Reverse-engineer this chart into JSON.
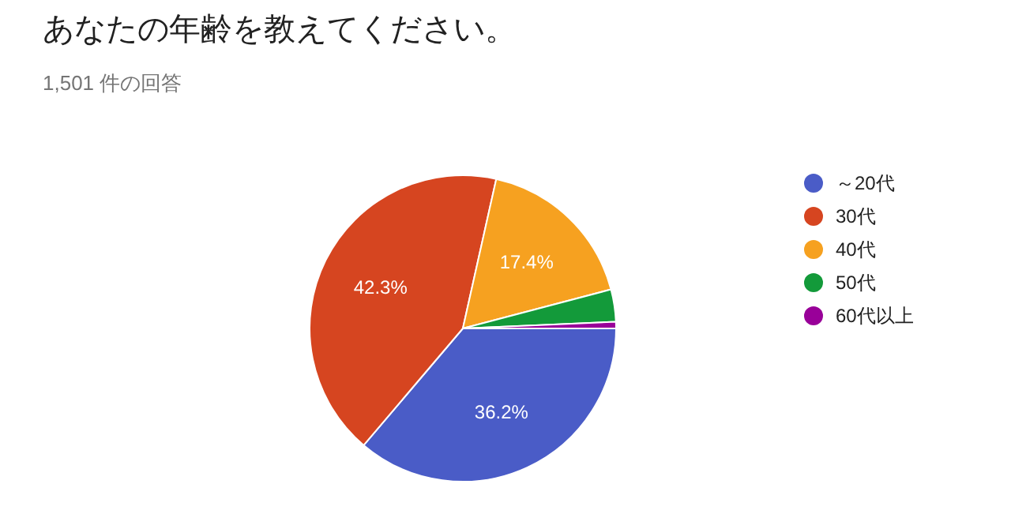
{
  "chart_data": {
    "type": "pie",
    "title": "あなたの年齢を教えてください。",
    "subtitle": "1,501 件の回答",
    "categories": [
      "～20代",
      "30代",
      "40代",
      "50代",
      "60代以上"
    ],
    "values": [
      36.2,
      42.3,
      17.4,
      3.4,
      0.7
    ],
    "value_labels": [
      "36.2%",
      "42.3%",
      "17.4%",
      null,
      null
    ],
    "colors": [
      "#4a5cc7",
      "#d64520",
      "#f6a120",
      "#139a3a",
      "#990099"
    ],
    "legend": "right"
  }
}
